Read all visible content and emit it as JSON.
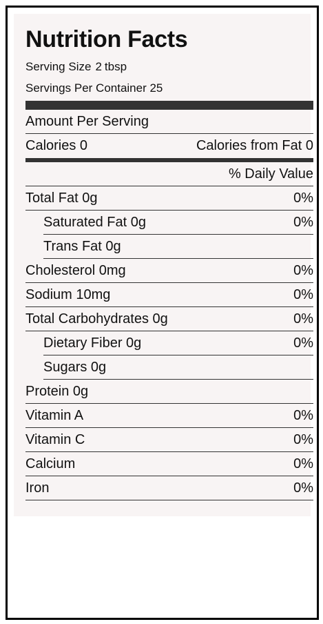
{
  "label": {
    "title": "Nutrition Facts",
    "serving_size_label": "Serving Size",
    "serving_size_qty": "2",
    "serving_size_unit": "tbsp",
    "servings_per_container": "Servings Per Container 25",
    "amount_per_serving": "Amount Per Serving",
    "calories": "Calories 0",
    "calories_from_fat": "Calories from Fat 0",
    "daily_value_header": "% Daily Value",
    "nutrients": [
      {
        "name": "Total Fat 0g",
        "dv": "0%"
      },
      {
        "name": "Saturated Fat 0g",
        "dv": "0%"
      },
      {
        "name": "Trans Fat 0g",
        "dv": ""
      },
      {
        "name": "Cholesterol 0mg",
        "dv": "0%"
      },
      {
        "name": "Sodium 10mg",
        "dv": "0%"
      },
      {
        "name": "Total Carbohydrates 0g",
        "dv": "0%"
      },
      {
        "name": "Dietary Fiber 0g",
        "dv": "0%"
      },
      {
        "name": "Sugars 0g",
        "dv": ""
      },
      {
        "name": "Protein 0g",
        "dv": ""
      },
      {
        "name": "Vitamin A",
        "dv": "0%"
      },
      {
        "name": "Vitamin C",
        "dv": "0%"
      },
      {
        "name": "Calcium",
        "dv": "0%"
      },
      {
        "name": "Iron",
        "dv": "0%"
      }
    ]
  }
}
